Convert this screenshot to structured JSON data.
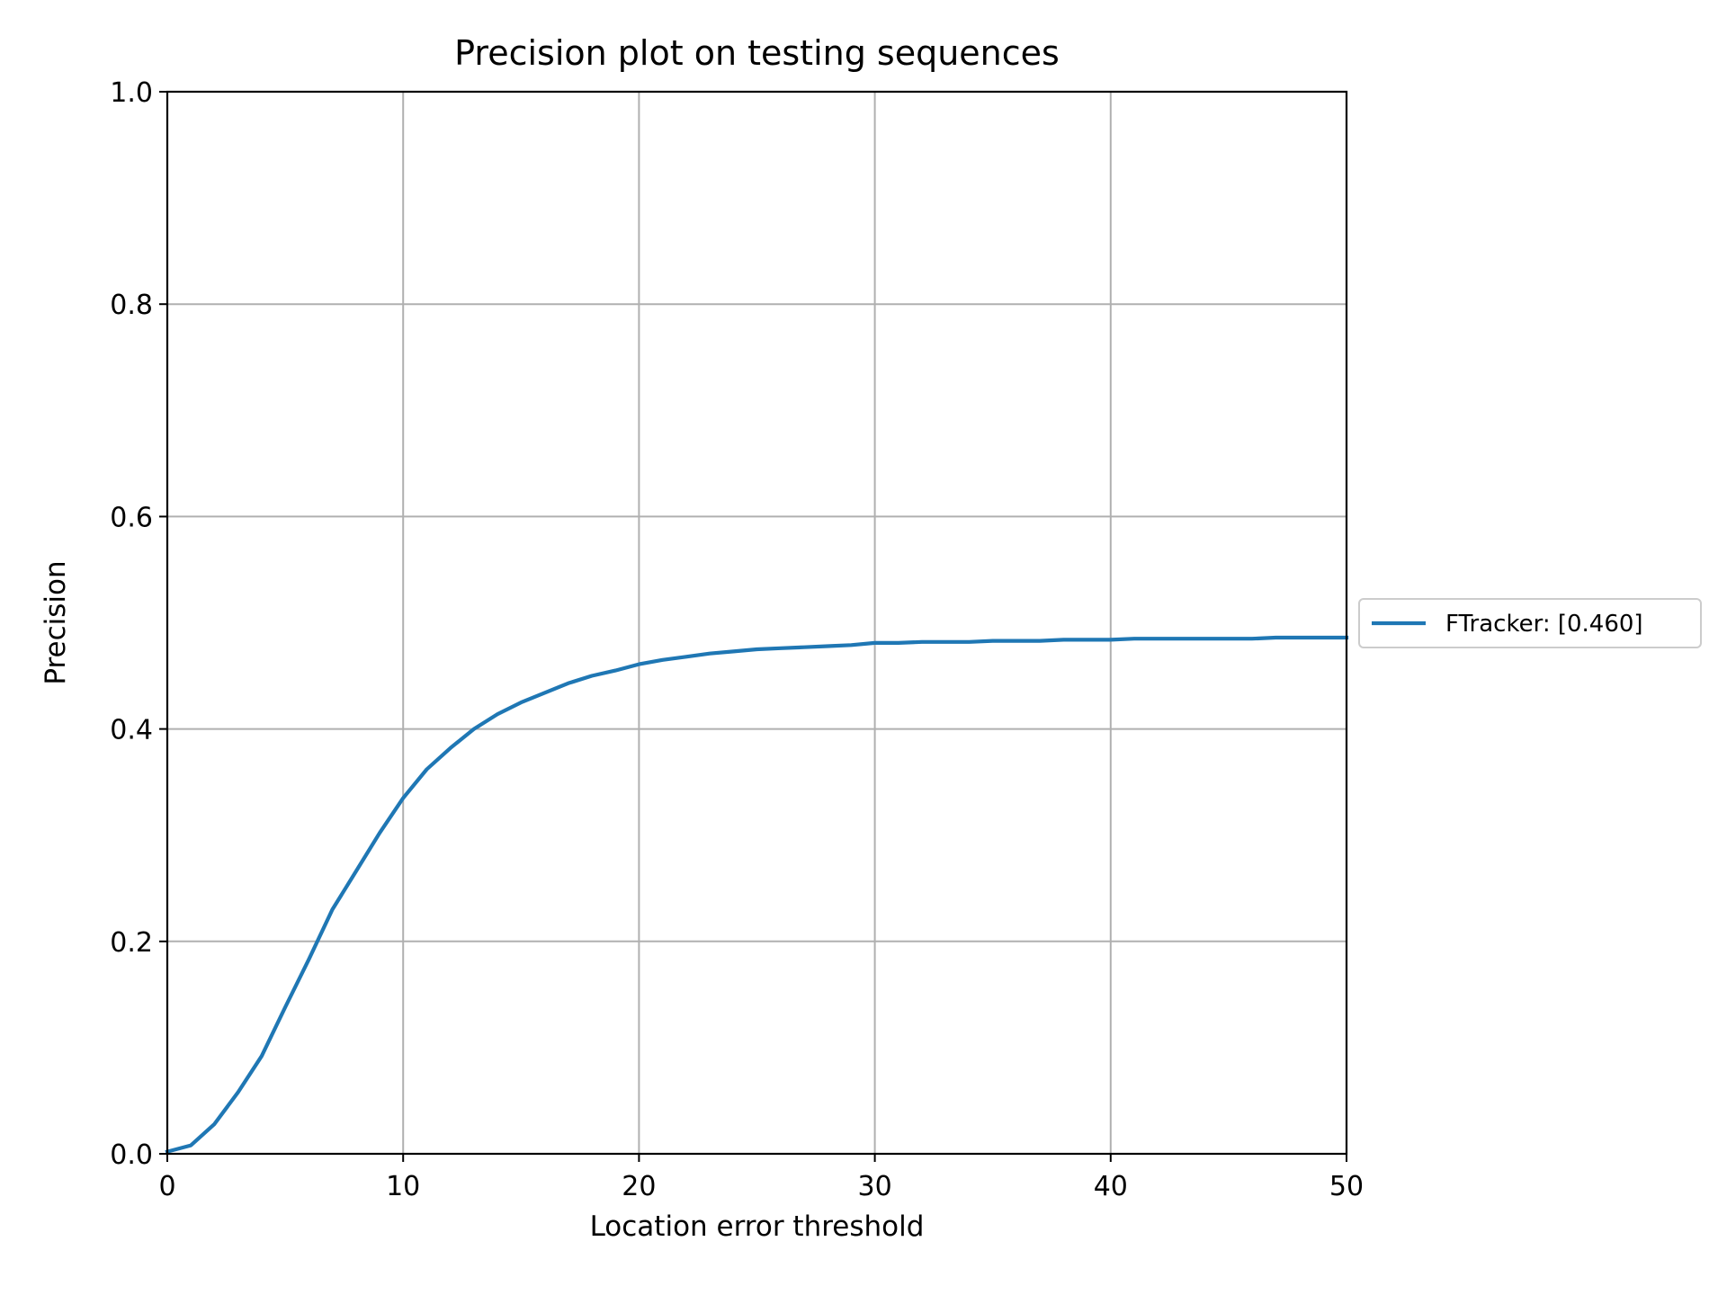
{
  "chart_data": {
    "type": "line",
    "title": "Precision plot on testing sequences",
    "xlabel": "Location error threshold",
    "ylabel": "Precision",
    "xlim": [
      0,
      50
    ],
    "ylim": [
      0,
      1.0
    ],
    "xticks": [
      "0",
      "10",
      "20",
      "30",
      "40",
      "50"
    ],
    "yticks": [
      "0.0",
      "0.2",
      "0.4",
      "0.6",
      "0.8",
      "1.0"
    ],
    "grid": true,
    "legend_position": "outside-right",
    "series": [
      {
        "name": "FTracker: [0.460]",
        "color": "#1f77b4",
        "x": [
          0,
          1,
          2,
          3,
          4,
          5,
          6,
          7,
          8,
          9,
          10,
          11,
          12,
          13,
          14,
          15,
          16,
          17,
          18,
          19,
          20,
          21,
          22,
          23,
          24,
          25,
          26,
          27,
          28,
          29,
          30,
          31,
          32,
          33,
          34,
          35,
          36,
          37,
          38,
          39,
          40,
          41,
          42,
          43,
          44,
          45,
          46,
          47,
          48,
          49,
          50
        ],
        "y": [
          0.002,
          0.008,
          0.028,
          0.058,
          0.092,
          0.138,
          0.183,
          0.23,
          0.266,
          0.302,
          0.335,
          0.362,
          0.382,
          0.4,
          0.414,
          0.425,
          0.434,
          0.443,
          0.45,
          0.455,
          0.461,
          0.465,
          0.468,
          0.471,
          0.473,
          0.475,
          0.476,
          0.477,
          0.478,
          0.479,
          0.481,
          0.481,
          0.482,
          0.482,
          0.482,
          0.483,
          0.483,
          0.483,
          0.484,
          0.484,
          0.484,
          0.485,
          0.485,
          0.485,
          0.485,
          0.485,
          0.485,
          0.486,
          0.486,
          0.486,
          0.486
        ]
      }
    ]
  }
}
